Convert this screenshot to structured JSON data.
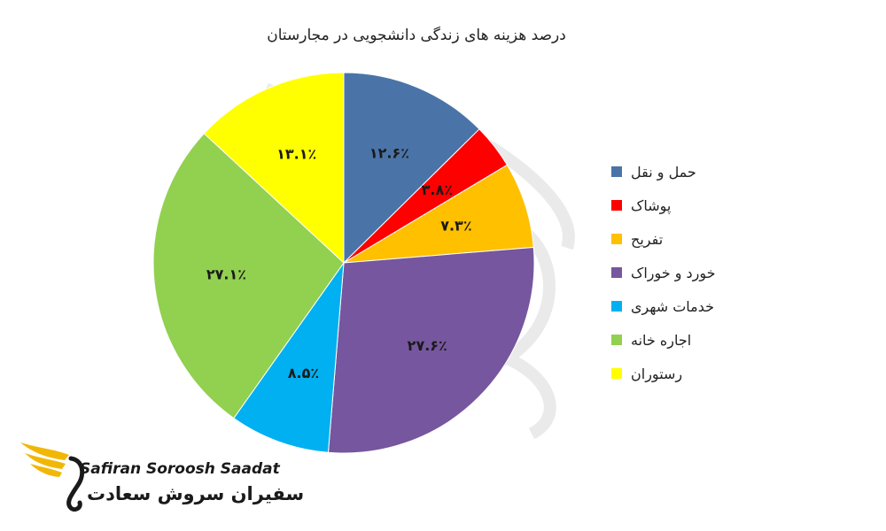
{
  "chart_data": {
    "type": "pie",
    "title": "درصد هزینه های زندگی دانشجویی در مجارستان",
    "slices": [
      {
        "label": "حمل و نقل",
        "value": 12.6,
        "value_label": "۱۲.۶٪",
        "color": "#4a74a8"
      },
      {
        "label": "پوشاک",
        "value": 3.8,
        "value_label": "۳.۸٪",
        "color": "#ff0000"
      },
      {
        "label": "تفریح",
        "value": 7.3,
        "value_label": "۷.۳٪",
        "color": "#ffc000"
      },
      {
        "label": "خورد و خوراک",
        "value": 27.6,
        "value_label": "۲۷.۶٪",
        "color": "#76569e"
      },
      {
        "label": "خدمات شهری",
        "value": 8.5,
        "value_label": "۸.۵٪",
        "color": "#00b0f0"
      },
      {
        "label": "اجاره خانه",
        "value": 27.1,
        "value_label": "۲۷.۱٪",
        "color": "#92d050"
      },
      {
        "label": "رستوران",
        "value": 13.1,
        "value_label": "۱۳.۱٪",
        "color": "#ffff00"
      }
    ],
    "legend_position": "right"
  },
  "logo": {
    "name_en": "Safiran Soroosh Saadat",
    "name_fa": "سفیران سروش سعادت",
    "accent_color": "#f2b705"
  }
}
